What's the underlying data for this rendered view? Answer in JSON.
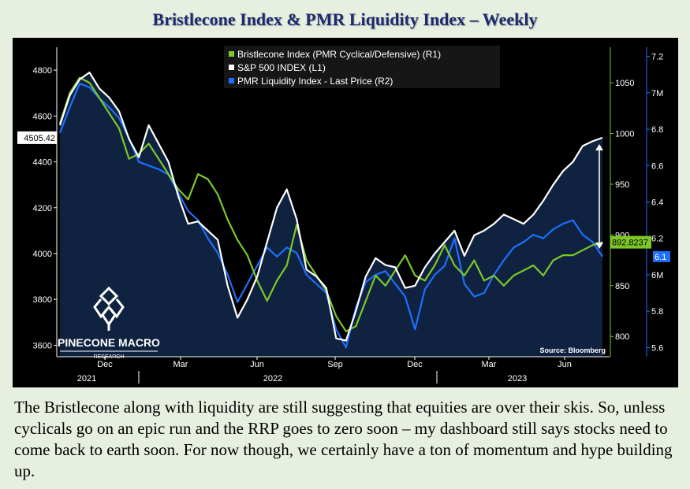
{
  "page_title": "Bristlecone Index & PMR Liquidity Index – Weekly",
  "caption": "The Bristlecone along with liquidity are still suggesting that equities are over their skis. So, unless cyclicals go on an epic run and the RRP goes to zero soon – my dashboard still says stocks need to come back to earth soon. For now though, we certainly have a ton of momentum and hype building up.",
  "brand": {
    "name": "PINECONE MACRO",
    "sub": "RESEARCH",
    "logo_icon": "pinecone-logo-icon"
  },
  "source": "Source: Bloomberg",
  "colors": {
    "green": "#7dc827",
    "white": "#ffffff",
    "blue": "#1f6fff",
    "area": "#0f2240",
    "background": "#000000"
  },
  "chart_data": {
    "type": "line",
    "title": "Bristlecone Index & PMR Liquidity Index – Weekly",
    "legend_position": "top-center",
    "grid": false,
    "x_tick_labels": [
      "Dec",
      "Mar",
      "Jun",
      "Sep",
      "Dec",
      "Mar",
      "Jun"
    ],
    "x_year_labels": [
      "2021",
      "2022",
      "2023"
    ],
    "y_left": {
      "ticks": [
        "4800",
        "4600",
        "4400",
        "4200",
        "4000",
        "3800",
        "3600"
      ],
      "range": [
        3550,
        4900
      ]
    },
    "y_r1": {
      "ticks": [
        "1050",
        "1000",
        "950",
        "900",
        "850",
        "800"
      ],
      "range": [
        780,
        1085
      ]
    },
    "y_r2": {
      "ticks": [
        "7.2",
        "7M",
        "6.8",
        "6.6",
        "6.4",
        "6.2",
        "6M",
        "5.8",
        "5.6"
      ],
      "range": [
        5.55,
        7.25
      ]
    },
    "last_values": {
      "spx": "4505.42",
      "bristlecone": "892.8237",
      "liquidity": "6.1"
    },
    "series": [
      {
        "name": "Bristlecone Index (PMR Cyclical/Defensive) (R1)",
        "color": "#7dc827",
        "axis": "r1",
        "values": [
          1010,
          1040,
          1055,
          1050,
          1035,
          1020,
          1005,
          975,
          980,
          990,
          975,
          960,
          945,
          935,
          960,
          955,
          940,
          915,
          895,
          880,
          855,
          835,
          855,
          870,
          910,
          875,
          860,
          845,
          820,
          805,
          810,
          835,
          860,
          850,
          865,
          880,
          860,
          855,
          870,
          890,
          870,
          860,
          875,
          855,
          860,
          850,
          860,
          865,
          870,
          860,
          875,
          880,
          880,
          885,
          890,
          892.82
        ]
      },
      {
        "name": "S&P 500 INDEX (L1)",
        "color": "#ffffff",
        "axis": "left",
        "values": [
          4560,
          4690,
          4760,
          4790,
          4720,
          4680,
          4620,
          4500,
          4420,
          4560,
          4480,
          4400,
          4250,
          4130,
          4140,
          4100,
          4060,
          3860,
          3720,
          3800,
          3900,
          4050,
          4200,
          4280,
          4150,
          3930,
          3900,
          3850,
          3630,
          3620,
          3750,
          3900,
          3980,
          3950,
          3940,
          3850,
          3860,
          3940,
          4000,
          4050,
          4100,
          3990,
          4080,
          4100,
          4130,
          4170,
          4150,
          4130,
          4170,
          4230,
          4300,
          4360,
          4400,
          4470,
          4490,
          4505.42
        ]
      },
      {
        "name": "PMR Liquidity Index - Last Price (R2)",
        "color": "#1f6fff",
        "axis": "r2",
        "values": [
          6.78,
          6.92,
          7.05,
          7.03,
          6.97,
          6.92,
          6.86,
          6.75,
          6.62,
          6.6,
          6.58,
          6.55,
          6.45,
          6.35,
          6.3,
          6.2,
          6.12,
          6.0,
          5.85,
          5.95,
          6.05,
          6.15,
          6.1,
          6.15,
          6.12,
          6.0,
          5.95,
          5.9,
          5.7,
          5.6,
          5.82,
          5.96,
          6.0,
          6.02,
          5.95,
          5.88,
          5.7,
          5.92,
          6.0,
          6.05,
          6.2,
          5.95,
          5.88,
          5.9,
          6.0,
          6.08,
          6.15,
          6.18,
          6.22,
          6.2,
          6.25,
          6.28,
          6.3,
          6.22,
          6.18,
          6.1
        ]
      }
    ]
  }
}
